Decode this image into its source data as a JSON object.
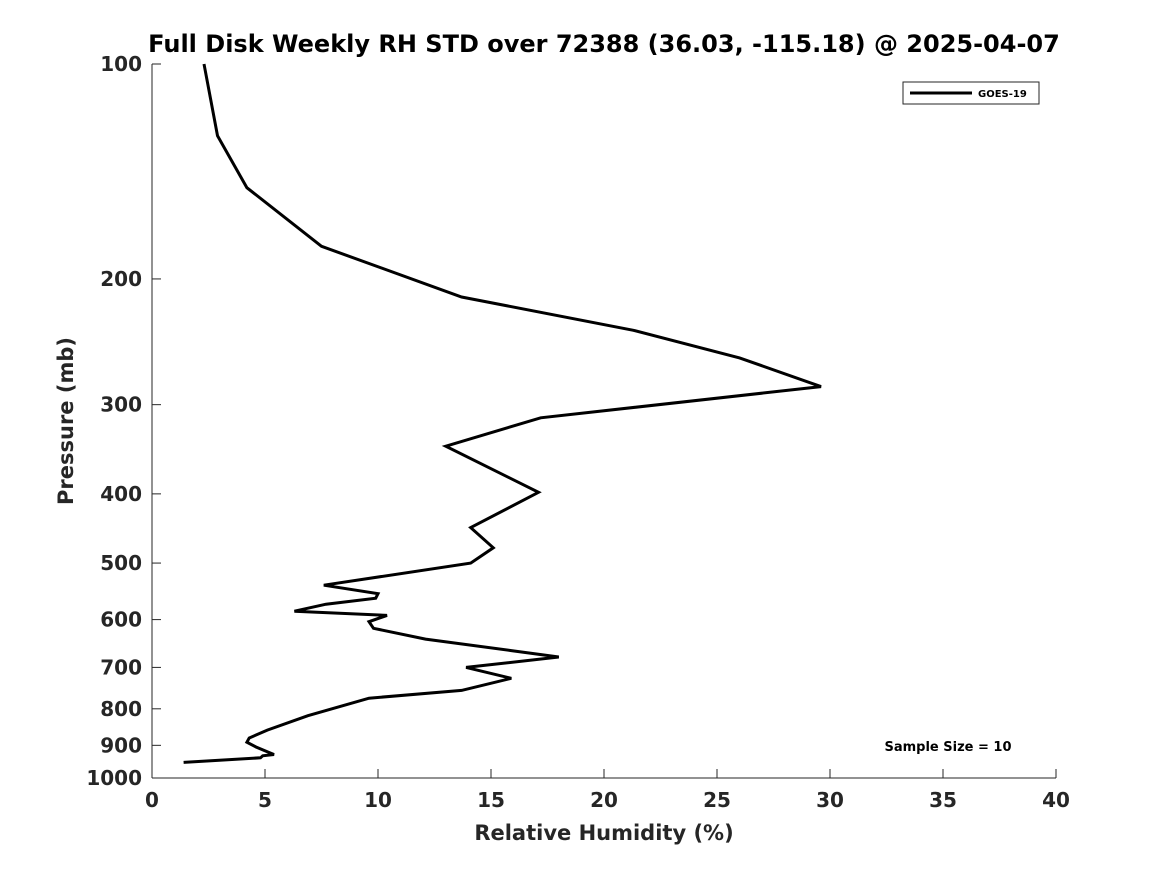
{
  "chart_data": {
    "type": "line",
    "title": "Full Disk Weekly RH STD over 72388 (36.03, -115.18) @ 2025-04-07",
    "xlabel": "Relative Humidity (%)",
    "ylabel": "Pressure (mb)",
    "xlim": [
      0,
      40
    ],
    "ylim": [
      100,
      1000
    ],
    "y_scale": "log",
    "y_reversed": true,
    "x_ticks": [
      0,
      5,
      10,
      15,
      20,
      25,
      30,
      35,
      40
    ],
    "x_tick_labels": [
      "0",
      "5",
      "10",
      "15",
      "20",
      "25",
      "30",
      "35",
      "40"
    ],
    "y_ticks": [
      100,
      200,
      300,
      400,
      500,
      600,
      700,
      800,
      900,
      1000
    ],
    "y_tick_labels": [
      "100",
      "200",
      "300",
      "400",
      "500",
      "600",
      "700",
      "800",
      "900",
      "1000"
    ],
    "grid": false,
    "legend_position": "top-right",
    "annotation": "Sample Size = 10",
    "series": [
      {
        "name": "GOES-19",
        "color": "#000000",
        "points": [
          [
            2.3,
            100
          ],
          [
            2.9,
            126
          ],
          [
            4.2,
            149
          ],
          [
            7.5,
            180
          ],
          [
            13.7,
            212
          ],
          [
            21.3,
            236
          ],
          [
            26.0,
            258
          ],
          [
            29.6,
            283
          ],
          [
            17.2,
            313
          ],
          [
            13.0,
            343
          ],
          [
            17.1,
            398
          ],
          [
            14.1,
            446
          ],
          [
            15.1,
            476
          ],
          [
            14.1,
            500
          ],
          [
            7.6,
            537
          ],
          [
            10.0,
            552
          ],
          [
            9.9,
            560
          ],
          [
            7.7,
            571
          ],
          [
            6.3,
            584
          ],
          [
            10.4,
            592
          ],
          [
            9.6,
            604
          ],
          [
            9.8,
            617
          ],
          [
            12.1,
            639
          ],
          [
            15.9,
            663
          ],
          [
            18.0,
            677
          ],
          [
            13.9,
            700
          ],
          [
            15.9,
            725
          ],
          [
            13.7,
            754
          ],
          [
            9.6,
            773
          ],
          [
            6.9,
            818
          ],
          [
            5.1,
            857
          ],
          [
            4.3,
            879
          ],
          [
            4.2,
            891
          ],
          [
            4.6,
            905
          ],
          [
            5.1,
            919
          ],
          [
            5.4,
            927
          ],
          [
            4.9,
            931
          ],
          [
            4.8,
            937
          ],
          [
            1.4,
            951
          ]
        ]
      }
    ]
  }
}
